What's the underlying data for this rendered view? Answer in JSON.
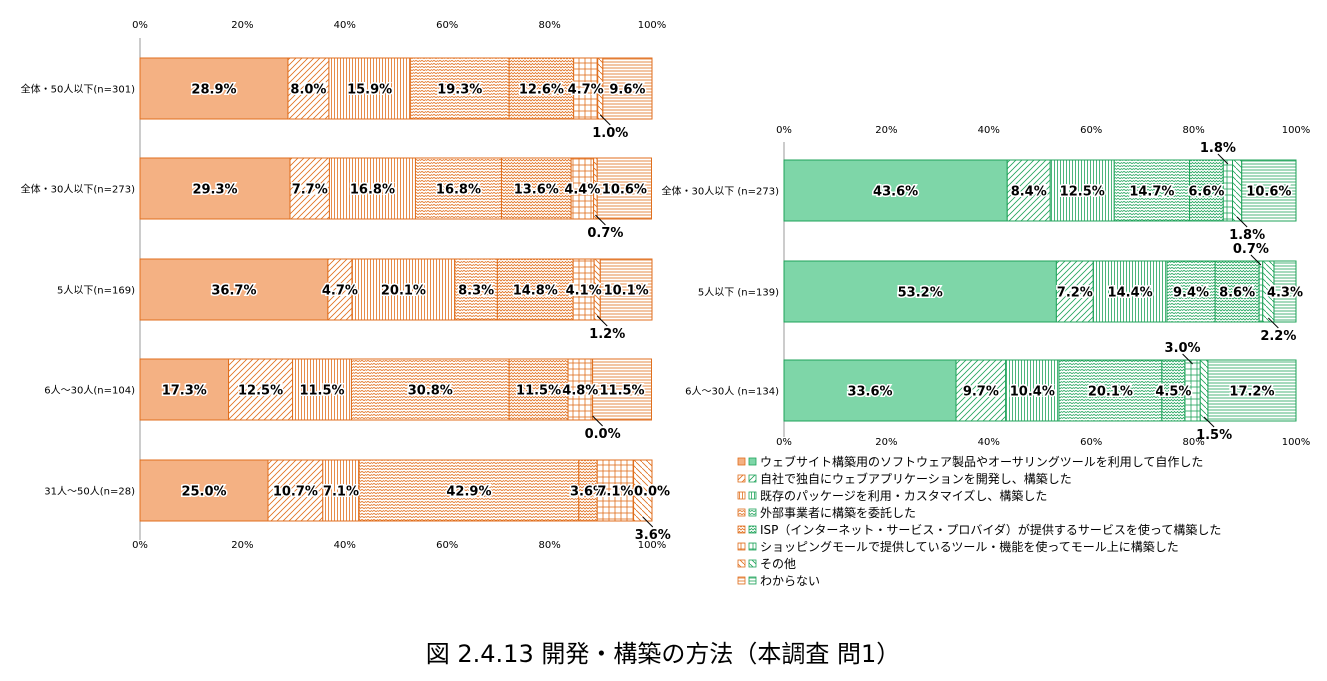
{
  "figure_caption": "図 2.4.13 開発・構築の方法（本調査 問1）",
  "colors": {
    "left_fill": "#f4b183",
    "left_pattern": "#e06e1c",
    "right_fill": "#7ed6a8",
    "right_pattern": "#1fa35a",
    "right_patterned_fill": "#ffffff"
  },
  "legend": [
    "ウェブサイト構築用のソフトウェア製品やオーサリングツールを利用して自作した",
    "自社で独自にウェブアプリケーションを開発し、構築した",
    "既存のパッケージを利用・カスタマイズし、構築した",
    "外部事業者に構築を委託した",
    "ISP（インターネット・サービス・プロバイダ）が提供するサービスを使って構築した",
    "ショッピングモールで提供しているツール・機能を使ってモール上に構築した",
    "その他",
    "わからない"
  ],
  "chart_data": [
    {
      "type": "bar",
      "orientation": "horizontal",
      "stacked": "percent",
      "title": "",
      "xlim": [
        0,
        100
      ],
      "x_ticks": [
        "0%",
        "20%",
        "40%",
        "60%",
        "80%",
        "100%"
      ],
      "categories": [
        "全体・50人以下(n=301)",
        "全体・30人以下(n=273)",
        "5人以下(n=169)",
        "6人～30人(n=104)",
        "31人～50人(n=28)"
      ],
      "series": [
        {
          "name": "ウェブサイト構築用のソフトウェア製品やオーサリングツールを利用して自作した",
          "values": [
            28.9,
            29.3,
            36.7,
            17.3,
            25.0
          ]
        },
        {
          "name": "自社で独自にウェブアプリケーションを開発し、構築した",
          "values": [
            8.0,
            7.7,
            4.7,
            12.5,
            10.7
          ]
        },
        {
          "name": "既存のパッケージを利用・カスタマイズし、構築した",
          "values": [
            15.9,
            16.8,
            20.1,
            11.5,
            7.1
          ]
        },
        {
          "name": "外部事業者に構築を委託した",
          "values": [
            19.3,
            16.8,
            8.3,
            30.8,
            42.9
          ]
        },
        {
          "name": "ISP（インターネット・サービス・プロバイダ）が提供するサービスを使って構築した",
          "values": [
            12.6,
            13.6,
            14.8,
            11.5,
            3.6
          ]
        },
        {
          "name": "ショッピングモールで提供しているツール・機能を使ってモール上に構築した",
          "values": [
            4.7,
            4.4,
            4.1,
            4.8,
            7.1
          ]
        },
        {
          "name": "その他",
          "values": [
            1.0,
            0.7,
            1.2,
            0.0,
            3.6
          ]
        },
        {
          "name": "わからない",
          "values": [
            9.6,
            10.6,
            10.1,
            11.5,
            0.0
          ]
        }
      ],
      "data_labels": [
        [
          "28.9%",
          "8.0%",
          "15.9%",
          "19.3%",
          "12.6%",
          "4.7%",
          "1.0%",
          "9.6%"
        ],
        [
          "29.3%",
          "7.7%",
          "16.8%",
          "16.8%",
          "13.6%",
          "4.4%",
          "0.7%",
          "10.6%"
        ],
        [
          "36.7%",
          "4.7%",
          "20.1%",
          "8.3%",
          "14.8%",
          "4.1%",
          "1.2%",
          "10.1%"
        ],
        [
          "17.3%",
          "12.5%",
          "11.5%",
          "30.8%",
          "11.5%",
          "4.8%",
          "0.0%",
          "11.5%"
        ],
        [
          "25.0%",
          "10.7%",
          "7.1%",
          "42.9%",
          "3.6%",
          "7.1%",
          "3.6%",
          "0.0%"
        ]
      ],
      "callouts": [
        {
          "row": 0,
          "series": 6
        },
        {
          "row": 1,
          "series": 6
        },
        {
          "row": 2,
          "series": 6
        },
        {
          "row": 3,
          "series": 6
        },
        {
          "row": 4,
          "series": 6
        }
      ]
    },
    {
      "type": "bar",
      "orientation": "horizontal",
      "stacked": "percent",
      "title": "",
      "xlim": [
        0,
        100
      ],
      "x_ticks": [
        "0%",
        "20%",
        "40%",
        "60%",
        "80%",
        "100%"
      ],
      "categories": [
        "全体・30人以下 (n=273)",
        "5人以下 (n=139)",
        "6人～30人 (n=134)"
      ],
      "series": [
        {
          "name": "ウェブサイト構築用のソフトウェア製品やオーサリングツールを利用して自作した",
          "values": [
            43.6,
            53.2,
            33.6
          ]
        },
        {
          "name": "自社で独自にウェブアプリケーションを開発し、構築した",
          "values": [
            8.4,
            7.2,
            9.7
          ]
        },
        {
          "name": "既存のパッケージを利用・カスタマイズし、構築した",
          "values": [
            12.5,
            14.4,
            10.4
          ]
        },
        {
          "name": "外部事業者に構築を委託した",
          "values": [
            14.7,
            9.4,
            20.1
          ]
        },
        {
          "name": "ISP（インターネット・サービス・プロバイダ）が提供するサービスを使って構築した",
          "values": [
            6.6,
            8.6,
            4.5
          ]
        },
        {
          "name": "ショッピングモールで提供しているツール・機能を使ってモール上に構築した",
          "values": [
            1.8,
            0.7,
            3.0
          ]
        },
        {
          "name": "その他",
          "values": [
            1.8,
            2.2,
            1.5
          ]
        },
        {
          "name": "わからない",
          "values": [
            10.6,
            4.3,
            17.2
          ]
        }
      ],
      "data_labels": [
        [
          "43.6%",
          "8.4%",
          "12.5%",
          "14.7%",
          "6.6%",
          "1.8%",
          "1.8%",
          "10.6%"
        ],
        [
          "53.2%",
          "7.2%",
          "14.4%",
          "9.4%",
          "8.6%",
          "0.7%",
          "2.2%",
          "4.3%"
        ],
        [
          "33.6%",
          "9.7%",
          "10.4%",
          "20.1%",
          "4.5%",
          "3.0%",
          "1.5%",
          "17.2%"
        ]
      ],
      "callouts": [
        {
          "row": 0,
          "series": 5,
          "position": "above"
        },
        {
          "row": 0,
          "series": 6,
          "position": "below"
        },
        {
          "row": 1,
          "series": 5,
          "position": "above"
        },
        {
          "row": 1,
          "series": 6,
          "position": "below"
        },
        {
          "row": 2,
          "series": 5,
          "position": "above"
        },
        {
          "row": 2,
          "series": 6,
          "position": "below"
        }
      ]
    }
  ]
}
